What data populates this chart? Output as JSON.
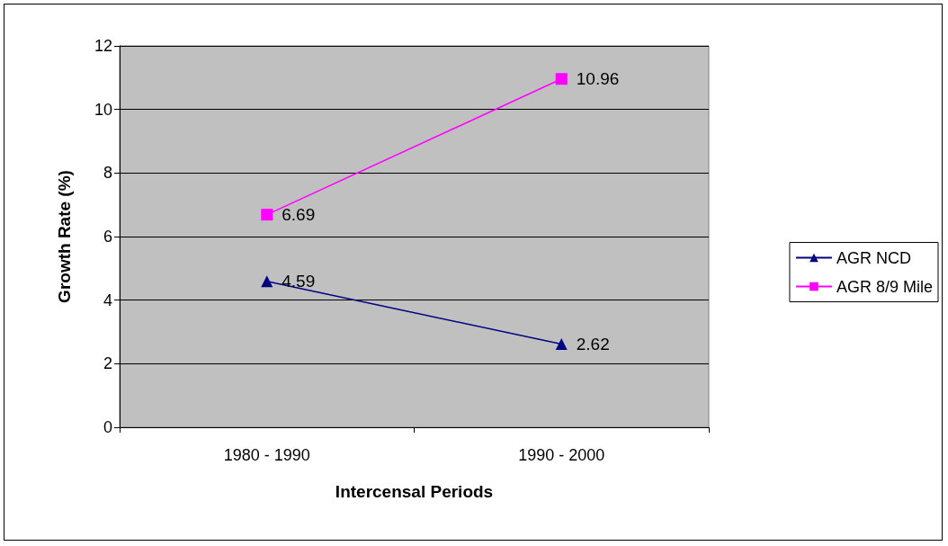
{
  "chart_data": {
    "type": "line",
    "xlabel": "Intercensal Periods",
    "ylabel": "Growth Rate (%)",
    "categories": [
      "1980 - 1990",
      "1990 - 2000"
    ],
    "series": [
      {
        "name": "AGR NCD",
        "color": "#000080",
        "marker": "triangle",
        "values": [
          4.59,
          2.62
        ]
      },
      {
        "name": "AGR 8/9 Mile",
        "color": "#ff00ff",
        "marker": "square",
        "values": [
          6.69,
          10.96
        ]
      }
    ],
    "ylim": [
      0,
      12
    ],
    "yticks": [
      0,
      2,
      4,
      6,
      8,
      10,
      12
    ],
    "grid": "y",
    "legend": "right",
    "data_labels": true,
    "line_style": "solid"
  }
}
